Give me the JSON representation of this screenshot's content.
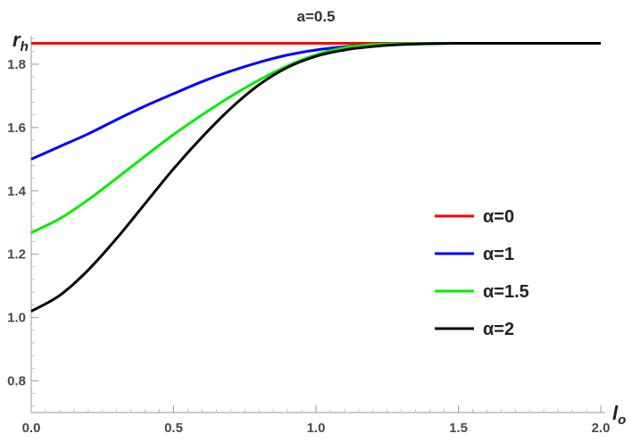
{
  "chart_data": {
    "type": "line",
    "title": "a=0.5",
    "xlabel": {
      "main": "l",
      "sub": "o"
    },
    "ylabel": {
      "main": "r",
      "sub": "h"
    },
    "xlim": [
      0,
      2.0
    ],
    "ylim": [
      0.7,
      1.89
    ],
    "x_ticks": [
      "0.0",
      "0.5",
      "1.0",
      "1.5",
      "2.0"
    ],
    "y_ticks": [
      "0.8",
      "1.0",
      "1.2",
      "1.4",
      "1.6",
      "1.8"
    ],
    "legend_placement": "right",
    "grid": false,
    "x": [
      0.0,
      0.1,
      0.2,
      0.3,
      0.4,
      0.5,
      0.6,
      0.7,
      0.8,
      0.9,
      1.0,
      1.1,
      1.2,
      1.3,
      1.4,
      1.5,
      1.6,
      1.7,
      1.8,
      1.9,
      2.0
    ],
    "series": [
      {
        "name": "α=0",
        "color": "#ff0000",
        "values": [
          1.866,
          1.866,
          1.866,
          1.866,
          1.866,
          1.866,
          1.866,
          1.866,
          1.866,
          1.866,
          1.866,
          1.866,
          1.866,
          1.866,
          1.866,
          1.866,
          1.866,
          1.866,
          1.866,
          1.866,
          1.866
        ]
      },
      {
        "name": "α=1",
        "color": "#0000ff",
        "values": [
          1.5,
          1.54,
          1.58,
          1.625,
          1.668,
          1.707,
          1.745,
          1.778,
          1.806,
          1.829,
          1.845,
          1.855,
          1.861,
          1.864,
          1.865,
          1.866,
          1.866,
          1.866,
          1.866,
          1.866,
          1.866
        ]
      },
      {
        "name": "α=1.5",
        "color": "#00ee00",
        "values": [
          1.268,
          1.312,
          1.372,
          1.44,
          1.51,
          1.578,
          1.64,
          1.698,
          1.75,
          1.795,
          1.83,
          1.852,
          1.862,
          1.865,
          1.866,
          1.866,
          1.866,
          1.866,
          1.866,
          1.866,
          1.866
        ]
      },
      {
        "name": "α=2",
        "color": "#000000",
        "values": [
          1.02,
          1.07,
          1.15,
          1.25,
          1.36,
          1.47,
          1.57,
          1.66,
          1.735,
          1.79,
          1.825,
          1.845,
          1.856,
          1.862,
          1.865,
          1.866,
          1.866,
          1.866,
          1.866,
          1.866,
          1.866
        ]
      }
    ]
  }
}
